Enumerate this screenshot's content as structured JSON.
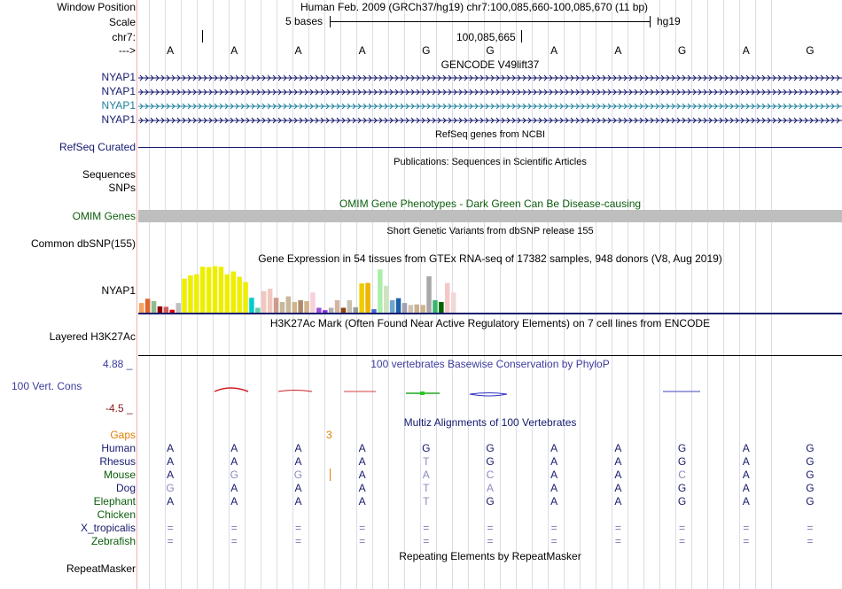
{
  "header": {
    "window_position_label": "Window Position",
    "window_position_value": "Human Feb. 2009 (GRCh37/hg19)   chr7:100,085,660-100,085,670 (11 bp)",
    "scale_label": "Scale",
    "scale_text": "5 bases",
    "scale_assembly": "hg19",
    "chrom_label": "chr7:",
    "position_tick": "100,085,665",
    "strand_label": "--->"
  },
  "bases": [
    "A",
    "A",
    "A",
    "A",
    "G",
    "G",
    "A",
    "A",
    "G",
    "A",
    "G"
  ],
  "gencode": {
    "title": "GENCODE V49lift37",
    "transcripts": [
      {
        "label": "NYAP1",
        "color": "#151a6e"
      },
      {
        "label": "NYAP1",
        "color": "#151a6e"
      },
      {
        "label": "NYAP1",
        "color": "#1d7f9c"
      },
      {
        "label": "NYAP1",
        "color": "#151a6e"
      }
    ]
  },
  "refseq": {
    "title": "RefSeq genes from NCBI",
    "label": "RefSeq Curated"
  },
  "publications": {
    "title": "Publications: Sequences in Scientific Articles",
    "label1": "Sequences",
    "label2": "SNPs"
  },
  "omim": {
    "title": "OMIM Gene Phenotypes - Dark Green Can Be Disease-causing",
    "label": "OMIM Genes",
    "color": "#bebebe"
  },
  "dbsnp": {
    "title": "Short Genetic Variants from dbSNP release 155",
    "label": "Common dbSNP(155)"
  },
  "gtex": {
    "title": "Gene Expression in 54 tissues from GTEx RNA-seq of 17382 samples, 948 donors (V8, Aug 2019)",
    "label": "NYAP1",
    "bars": [
      {
        "v": 0.22,
        "c": "#f4a460"
      },
      {
        "v": 0.31,
        "c": "#e0662b"
      },
      {
        "v": 0.26,
        "c": "#8fbc8f"
      },
      {
        "v": 0.15,
        "c": "#8b0000"
      },
      {
        "v": 0.14,
        "c": "#cd5c5c"
      },
      {
        "v": 0.08,
        "c": "#dd0000"
      },
      {
        "v": 0.22,
        "c": "#c0c0c0"
      },
      {
        "v": 0.73,
        "c": "#eeee00"
      },
      {
        "v": 0.8,
        "c": "#eeee00"
      },
      {
        "v": 0.82,
        "c": "#eeee00"
      },
      {
        "v": 0.98,
        "c": "#eeee00"
      },
      {
        "v": 0.97,
        "c": "#eeee00"
      },
      {
        "v": 0.99,
        "c": "#eeee00"
      },
      {
        "v": 0.98,
        "c": "#eeee00"
      },
      {
        "v": 0.82,
        "c": "#eeee00"
      },
      {
        "v": 0.88,
        "c": "#eeee00"
      },
      {
        "v": 0.77,
        "c": "#eeee00"
      },
      {
        "v": 0.66,
        "c": "#eeee00"
      },
      {
        "v": 0.33,
        "c": "#00cdcd"
      },
      {
        "v": 0.12,
        "c": "#66cdaa"
      },
      {
        "v": 0.47,
        "c": "#f0c8c0"
      },
      {
        "v": 0.52,
        "c": "#f0c8c0"
      },
      {
        "v": 0.33,
        "c": "#cd9b8b"
      },
      {
        "v": 0.24,
        "c": "#c8b89c"
      },
      {
        "v": 0.36,
        "c": "#c8b89c"
      },
      {
        "v": 0.24,
        "c": "#d2b48c"
      },
      {
        "v": 0.28,
        "c": "#b08a6e"
      },
      {
        "v": 0.26,
        "c": "#d2b48c"
      },
      {
        "v": 0.44,
        "c": "#f8d0d8"
      },
      {
        "v": 0.12,
        "c": "#9a4fd4"
      },
      {
        "v": 0.07,
        "c": "#8a2be2"
      },
      {
        "v": 0.12,
        "c": "#b0b0b0"
      },
      {
        "v": 0.28,
        "c": "#d2b4a0"
      },
      {
        "v": 0.12,
        "c": "#8b4513"
      },
      {
        "v": 0.28,
        "c": "#c8c0b0"
      },
      {
        "v": 0.13,
        "c": "#9a9a9a"
      },
      {
        "v": 0.63,
        "c": "#eecc00"
      },
      {
        "v": 0.64,
        "c": "#eeb400"
      },
      {
        "v": 0.09,
        "c": "#4169e1"
      },
      {
        "v": 0.92,
        "c": "#aaeeaa"
      },
      {
        "v": 0.58,
        "c": "#cfe3c2"
      },
      {
        "v": 0.28,
        "c": "#6ca6cd"
      },
      {
        "v": 0.32,
        "c": "#1e5faa"
      },
      {
        "v": 0.22,
        "c": "#a0a0b0"
      },
      {
        "v": 0.18,
        "c": "#d2c0b0"
      },
      {
        "v": 0.19,
        "c": "#c8b090"
      },
      {
        "v": 0.18,
        "c": "#d2b48c"
      },
      {
        "v": 0.78,
        "c": "#a8a8a8"
      },
      {
        "v": 0.28,
        "c": "#3cb371"
      },
      {
        "v": 0.24,
        "c": "#006400"
      },
      {
        "v": 0.64,
        "c": "#f5c8c8"
      },
      {
        "v": 0.44,
        "c": "#f0d8d8"
      }
    ]
  },
  "h3k27ac": {
    "title": "H3K27Ac Mark (Often Found Near Active Regulatory Elements) on 7 cell lines from ENCODE",
    "label": "Layered H3K27Ac"
  },
  "phylop": {
    "title": "100 vertebrates Basewise Conservation by PhyloP",
    "label": "100 Vert. Cons",
    "max_label": "4.88 _",
    "min_label": "-4.5 _",
    "max_color": "#3c3c9c",
    "min_color": "#8b1a1a"
  },
  "multiz": {
    "title": "Multiz Alignments of 100 Vertebrates",
    "gaps_label": "Gaps",
    "gap_count": "3",
    "species": [
      {
        "name": "Human",
        "color": "#151a6e",
        "seq": [
          "A",
          "A",
          "A",
          "A",
          "G",
          "G",
          "A",
          "A",
          "G",
          "A",
          "G"
        ]
      },
      {
        "name": "Rhesus",
        "color": "#151a6e",
        "seq": [
          "A",
          "A",
          "A",
          "A",
          "T",
          "G",
          "A",
          "A",
          "G",
          "A",
          "G"
        ]
      },
      {
        "name": "Mouse",
        "color": "#0b5d0b",
        "seq": [
          "A",
          "G",
          "G",
          "A",
          "A",
          "C",
          "A",
          "A",
          "C",
          "A",
          "G"
        ]
      },
      {
        "name": "Dog",
        "color": "#151a6e",
        "seq": [
          "G",
          "A",
          "A",
          "A",
          "T",
          "A",
          "A",
          "A",
          "G",
          "A",
          "G"
        ]
      },
      {
        "name": "Elephant",
        "color": "#0b5d0b",
        "seq": [
          "A",
          "A",
          "A",
          "A",
          "T",
          "G",
          "A",
          "A",
          "G",
          "A",
          "G"
        ]
      },
      {
        "name": "Chicken",
        "color": "#0b5d0b",
        "seq": [
          "",
          "",
          "",
          "",
          "",
          "",
          "",
          "",
          "",
          "",
          ""
        ]
      },
      {
        "name": "X_tropicalis",
        "color": "#151a6e",
        "seq": [
          "=",
          "=",
          "=",
          "=",
          "=",
          "=",
          "=",
          "=",
          "=",
          "=",
          "="
        ]
      },
      {
        "name": "Zebrafish",
        "color": "#0b5d0b",
        "seq": [
          "=",
          "=",
          "=",
          "=",
          "=",
          "=",
          "=",
          "=",
          "=",
          "=",
          "="
        ]
      }
    ]
  },
  "repeatmasker": {
    "title": "Repeating Elements by RepeatMasker",
    "label": "RepeatMasker"
  }
}
